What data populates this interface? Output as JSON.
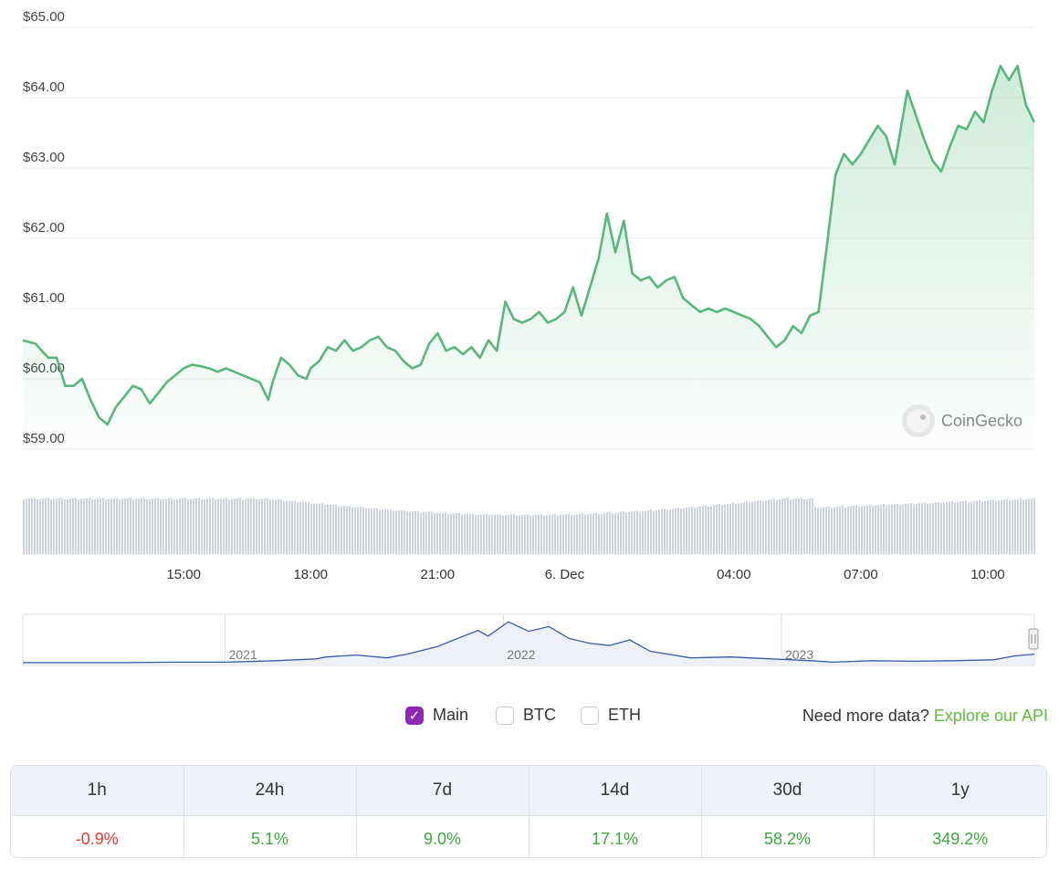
{
  "chart_data": {
    "type": "area",
    "y_ticks": [
      "$65.00",
      "$64.00",
      "$63.00",
      "$62.00",
      "$61.00",
      "$60.00",
      "$59.00"
    ],
    "y_tick_values": [
      65,
      64,
      63,
      62,
      61,
      60,
      59
    ],
    "ylim": [
      58.9,
      65.1
    ],
    "x_ticks": [
      "15:00",
      "18:00",
      "21:00",
      "6. Dec",
      "04:00",
      "07:00",
      "10:00"
    ],
    "x_tick_hours": [
      15,
      18,
      21,
      24,
      28,
      31,
      34
    ],
    "xlim_hours": [
      11.2,
      35.1
    ],
    "line_color": "#57b87a",
    "price_series": [
      [
        11.2,
        60.55
      ],
      [
        11.5,
        60.5
      ],
      [
        11.8,
        60.3
      ],
      [
        12.0,
        60.3
      ],
      [
        12.2,
        59.9
      ],
      [
        12.4,
        59.9
      ],
      [
        12.6,
        60.0
      ],
      [
        12.8,
        59.7
      ],
      [
        13.0,
        59.45
      ],
      [
        13.2,
        59.35
      ],
      [
        13.4,
        59.6
      ],
      [
        13.6,
        59.75
      ],
      [
        13.8,
        59.9
      ],
      [
        14.0,
        59.85
      ],
      [
        14.2,
        59.65
      ],
      [
        14.4,
        59.8
      ],
      [
        14.6,
        59.95
      ],
      [
        14.8,
        60.05
      ],
      [
        15.0,
        60.15
      ],
      [
        15.2,
        60.2
      ],
      [
        15.4,
        60.18
      ],
      [
        15.6,
        60.15
      ],
      [
        15.8,
        60.1
      ],
      [
        16.0,
        60.15
      ],
      [
        16.2,
        60.1
      ],
      [
        16.4,
        60.05
      ],
      [
        16.6,
        60.0
      ],
      [
        16.8,
        59.95
      ],
      [
        17.0,
        59.7
      ],
      [
        17.1,
        59.95
      ],
      [
        17.3,
        60.3
      ],
      [
        17.5,
        60.2
      ],
      [
        17.7,
        60.05
      ],
      [
        17.9,
        60.0
      ],
      [
        18.0,
        60.15
      ],
      [
        18.2,
        60.25
      ],
      [
        18.4,
        60.45
      ],
      [
        18.6,
        60.4
      ],
      [
        18.8,
        60.55
      ],
      [
        19.0,
        60.4
      ],
      [
        19.2,
        60.45
      ],
      [
        19.4,
        60.55
      ],
      [
        19.6,
        60.6
      ],
      [
        19.8,
        60.45
      ],
      [
        20.0,
        60.4
      ],
      [
        20.2,
        60.25
      ],
      [
        20.4,
        60.15
      ],
      [
        20.6,
        60.2
      ],
      [
        20.8,
        60.5
      ],
      [
        21.0,
        60.65
      ],
      [
        21.2,
        60.4
      ],
      [
        21.4,
        60.45
      ],
      [
        21.6,
        60.35
      ],
      [
        21.8,
        60.45
      ],
      [
        22.0,
        60.3
      ],
      [
        22.2,
        60.55
      ],
      [
        22.4,
        60.4
      ],
      [
        22.6,
        61.1
      ],
      [
        22.8,
        60.85
      ],
      [
        23.0,
        60.8
      ],
      [
        23.2,
        60.85
      ],
      [
        23.4,
        60.95
      ],
      [
        23.6,
        60.8
      ],
      [
        23.8,
        60.85
      ],
      [
        24.0,
        60.95
      ],
      [
        24.2,
        61.3
      ],
      [
        24.4,
        60.9
      ],
      [
        24.6,
        61.3
      ],
      [
        24.8,
        61.7
      ],
      [
        25.0,
        62.35
      ],
      [
        25.2,
        61.8
      ],
      [
        25.4,
        62.25
      ],
      [
        25.6,
        61.5
      ],
      [
        25.8,
        61.4
      ],
      [
        26.0,
        61.45
      ],
      [
        26.2,
        61.3
      ],
      [
        26.4,
        61.4
      ],
      [
        26.6,
        61.45
      ],
      [
        26.8,
        61.15
      ],
      [
        27.0,
        61.05
      ],
      [
        27.2,
        60.95
      ],
      [
        27.4,
        61.0
      ],
      [
        27.6,
        60.95
      ],
      [
        27.8,
        61.0
      ],
      [
        28.0,
        60.95
      ],
      [
        28.2,
        60.9
      ],
      [
        28.4,
        60.85
      ],
      [
        28.6,
        60.75
      ],
      [
        28.8,
        60.6
      ],
      [
        29.0,
        60.45
      ],
      [
        29.2,
        60.55
      ],
      [
        29.4,
        60.75
      ],
      [
        29.6,
        60.65
      ],
      [
        29.8,
        60.9
      ],
      [
        30.0,
        60.95
      ],
      [
        30.2,
        61.9
      ],
      [
        30.4,
        62.9
      ],
      [
        30.6,
        63.2
      ],
      [
        30.8,
        63.05
      ],
      [
        31.0,
        63.2
      ],
      [
        31.2,
        63.4
      ],
      [
        31.4,
        63.6
      ],
      [
        31.6,
        63.45
      ],
      [
        31.8,
        63.05
      ],
      [
        31.9,
        63.4
      ],
      [
        32.1,
        64.1
      ],
      [
        32.3,
        63.75
      ],
      [
        32.5,
        63.4
      ],
      [
        32.7,
        63.1
      ],
      [
        32.9,
        62.95
      ],
      [
        33.1,
        63.3
      ],
      [
        33.3,
        63.6
      ],
      [
        33.5,
        63.55
      ],
      [
        33.7,
        63.8
      ],
      [
        33.9,
        63.65
      ],
      [
        34.1,
        64.1
      ],
      [
        34.3,
        64.45
      ],
      [
        34.5,
        64.25
      ],
      [
        34.7,
        64.45
      ],
      [
        34.9,
        63.9
      ],
      [
        35.1,
        63.65
      ]
    ]
  },
  "navigator": {
    "labels": [
      "2021",
      "2022",
      "2023"
    ],
    "label_fractions": [
      0.2,
      0.475,
      0.75
    ],
    "series": [
      [
        0,
        0.04
      ],
      [
        0.05,
        0.04
      ],
      [
        0.1,
        0.04
      ],
      [
        0.15,
        0.05
      ],
      [
        0.2,
        0.05
      ],
      [
        0.25,
        0.08
      ],
      [
        0.29,
        0.12
      ],
      [
        0.3,
        0.16
      ],
      [
        0.33,
        0.2
      ],
      [
        0.36,
        0.14
      ],
      [
        0.38,
        0.22
      ],
      [
        0.41,
        0.38
      ],
      [
        0.43,
        0.55
      ],
      [
        0.45,
        0.72
      ],
      [
        0.46,
        0.6
      ],
      [
        0.48,
        0.9
      ],
      [
        0.5,
        0.7
      ],
      [
        0.52,
        0.8
      ],
      [
        0.54,
        0.55
      ],
      [
        0.56,
        0.45
      ],
      [
        0.58,
        0.4
      ],
      [
        0.6,
        0.52
      ],
      [
        0.62,
        0.28
      ],
      [
        0.66,
        0.14
      ],
      [
        0.7,
        0.16
      ],
      [
        0.74,
        0.12
      ],
      [
        0.78,
        0.08
      ],
      [
        0.8,
        0.05
      ],
      [
        0.84,
        0.08
      ],
      [
        0.88,
        0.07
      ],
      [
        0.92,
        0.08
      ],
      [
        0.96,
        0.1
      ],
      [
        0.98,
        0.18
      ],
      [
        1.0,
        0.22
      ]
    ]
  },
  "watermark": "CoinGecko",
  "controls": {
    "options": [
      {
        "label": "Main",
        "checked": true
      },
      {
        "label": "BTC",
        "checked": false
      },
      {
        "label": "ETH",
        "checked": false
      }
    ],
    "api_prompt": "Need more data?",
    "api_link": "Explore our API"
  },
  "performance": {
    "headers": [
      "1h",
      "24h",
      "7d",
      "14d",
      "30d",
      "1y"
    ],
    "values": [
      "-0.9%",
      "5.1%",
      "9.0%",
      "17.1%",
      "58.2%",
      "349.2%"
    ],
    "value_signs": [
      "neg",
      "pos",
      "pos",
      "pos",
      "pos",
      "pos"
    ]
  }
}
